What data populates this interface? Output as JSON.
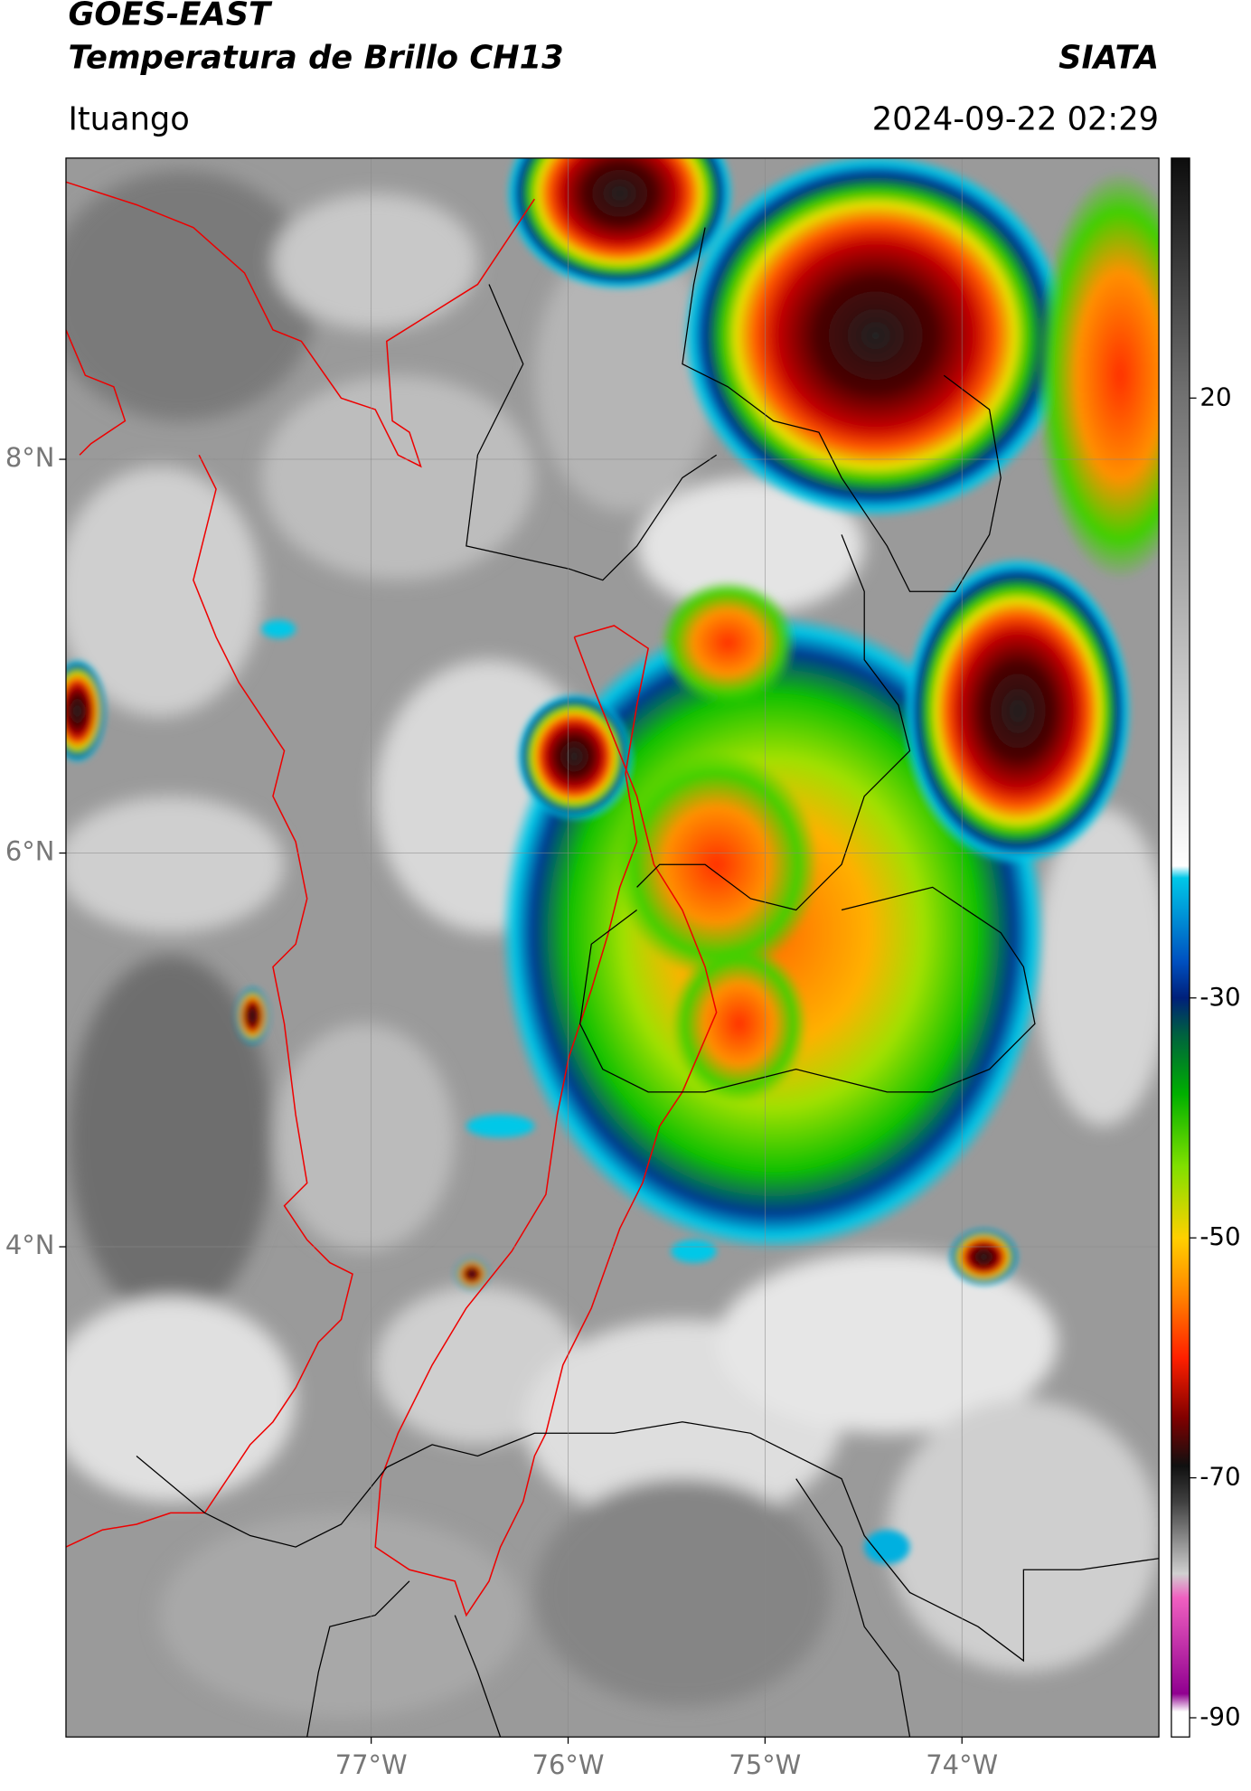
{
  "header": {
    "title": "GOES-EAST",
    "subtitle": "Temperatura de Brillo CH13",
    "source": "SIATA",
    "location": "Ituango",
    "datetime": "2024-09-22 02:29"
  },
  "map": {
    "xlim": [
      -78.55,
      -73.0
    ],
    "ylim": [
      1.51,
      9.53
    ],
    "grid": true,
    "xticks": [
      {
        "value": -77,
        "label": "77°W"
      },
      {
        "value": -76,
        "label": "76°W"
      },
      {
        "value": -75,
        "label": "75°W"
      },
      {
        "value": -74,
        "label": "74°W"
      }
    ],
    "yticks": [
      {
        "value": 8,
        "label": "8°N"
      },
      {
        "value": 6,
        "label": "6°N"
      },
      {
        "value": 4,
        "label": "4°N"
      }
    ]
  },
  "colorbar": {
    "lim": [
      -91.6,
      40
    ],
    "ticks": [
      20,
      -30,
      -50,
      -70,
      -90
    ],
    "colormap": [
      {
        "value": 40,
        "color": "#0d0d0d"
      },
      {
        "value": 20,
        "color": "#727272"
      },
      {
        "value": -19,
        "color": "#ffffff"
      },
      {
        "value": -20,
        "color": "#00c8e8"
      },
      {
        "value": -27,
        "color": "#0050c0"
      },
      {
        "value": -30,
        "color": "#00207a"
      },
      {
        "value": -33,
        "color": "#006040"
      },
      {
        "value": -38,
        "color": "#00b000"
      },
      {
        "value": -44,
        "color": "#80e000"
      },
      {
        "value": -50,
        "color": "#ffd000"
      },
      {
        "value": -55,
        "color": "#ff8000"
      },
      {
        "value": -60,
        "color": "#ff2000"
      },
      {
        "value": -65,
        "color": "#800000"
      },
      {
        "value": -69,
        "color": "#101010"
      },
      {
        "value": -72,
        "color": "#404040"
      },
      {
        "value": -78,
        "color": "#d0d0d0"
      },
      {
        "value": -80,
        "color": "#f060c0"
      },
      {
        "value": -88,
        "color": "#900090"
      },
      {
        "value": -89.5,
        "color": "#ffffff"
      },
      {
        "value": -91.6,
        "color": "#ffffff"
      }
    ]
  }
}
